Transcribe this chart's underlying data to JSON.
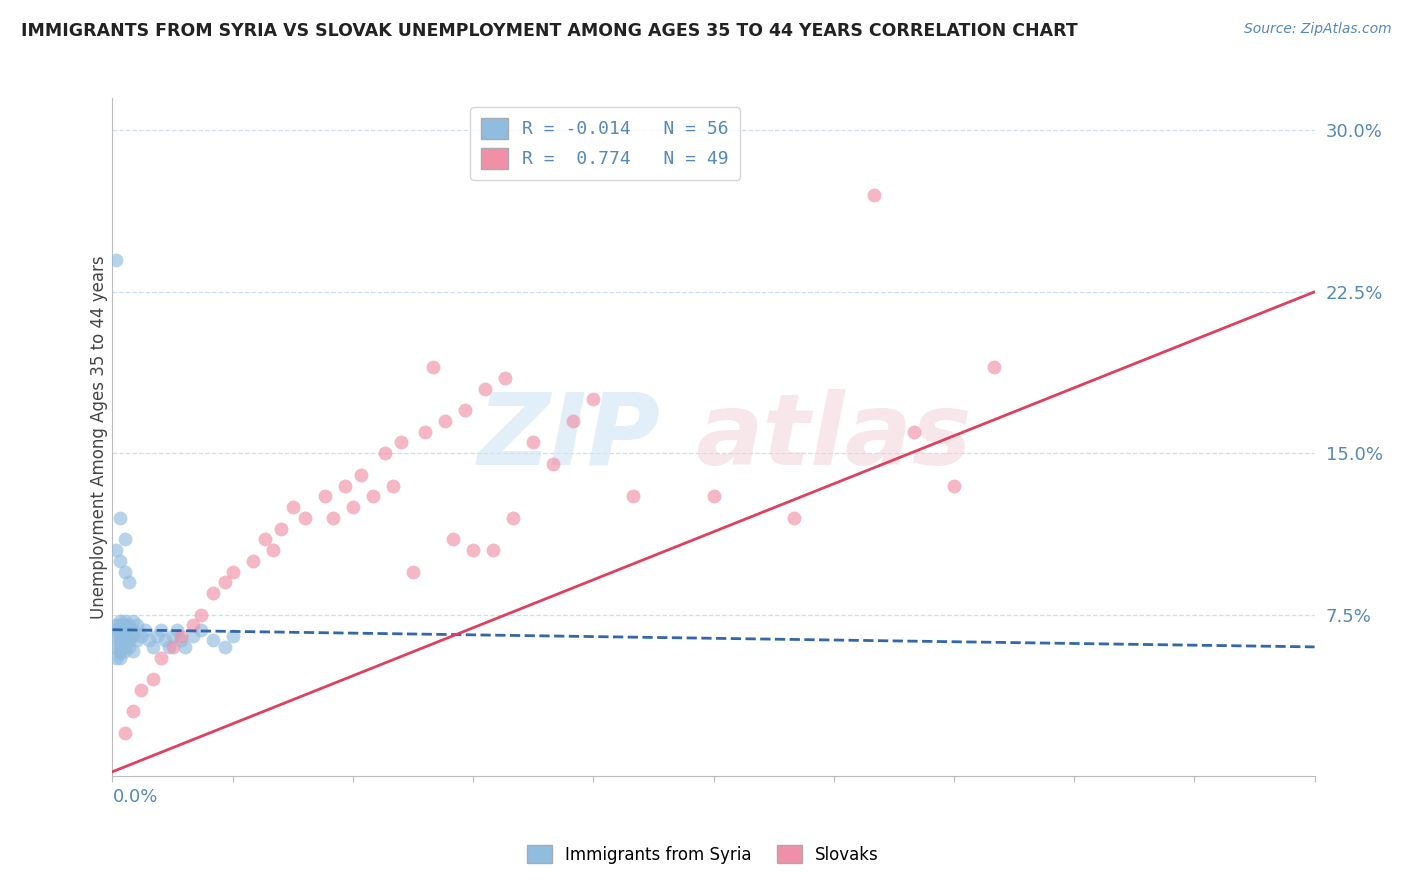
{
  "title": "IMMIGRANTS FROM SYRIA VS SLOVAK UNEMPLOYMENT AMONG AGES 35 TO 44 YEARS CORRELATION CHART",
  "source": "Source: ZipAtlas.com",
  "ylabel": "Unemployment Among Ages 35 to 44 years",
  "xlim": [
    0.0,
    0.3
  ],
  "ylim": [
    0.0,
    0.315
  ],
  "series1_label": "Immigrants from Syria",
  "series2_label": "Slovaks",
  "series1_color": "#90bce0",
  "series2_color": "#f090a8",
  "series1_line_color": "#3366aa",
  "series2_line_color": "#e04060",
  "series1_R": -0.014,
  "series2_R": 0.774,
  "series1_N": 56,
  "series2_N": 49,
  "ytick_vals": [
    0.075,
    0.15,
    0.225,
    0.3
  ],
  "ytick_labels": [
    "7.5%",
    "15.0%",
    "22.5%",
    "30.0%"
  ],
  "series1_x": [
    0.001,
    0.001,
    0.001,
    0.001,
    0.001,
    0.002,
    0.002,
    0.002,
    0.002,
    0.002,
    0.002,
    0.002,
    0.002,
    0.002,
    0.002,
    0.003,
    0.003,
    0.003,
    0.003,
    0.003,
    0.003,
    0.003,
    0.004,
    0.004,
    0.004,
    0.004,
    0.005,
    0.005,
    0.005,
    0.005,
    0.006,
    0.006,
    0.007,
    0.008,
    0.009,
    0.01,
    0.011,
    0.012,
    0.013,
    0.014,
    0.015,
    0.016,
    0.017,
    0.018,
    0.02,
    0.022,
    0.025,
    0.028,
    0.03,
    0.001,
    0.002,
    0.003,
    0.002,
    0.001,
    0.003,
    0.004
  ],
  "series1_y": [
    0.065,
    0.06,
    0.07,
    0.055,
    0.068,
    0.062,
    0.058,
    0.072,
    0.065,
    0.06,
    0.068,
    0.055,
    0.07,
    0.063,
    0.057,
    0.065,
    0.06,
    0.07,
    0.063,
    0.068,
    0.058,
    0.072,
    0.065,
    0.06,
    0.07,
    0.063,
    0.068,
    0.058,
    0.072,
    0.065,
    0.07,
    0.063,
    0.065,
    0.068,
    0.063,
    0.06,
    0.065,
    0.068,
    0.063,
    0.06,
    0.065,
    0.068,
    0.063,
    0.06,
    0.065,
    0.068,
    0.063,
    0.06,
    0.065,
    0.24,
    0.12,
    0.11,
    0.1,
    0.105,
    0.095,
    0.09
  ],
  "series2_x": [
    0.003,
    0.005,
    0.007,
    0.01,
    0.012,
    0.015,
    0.017,
    0.02,
    0.022,
    0.025,
    0.028,
    0.03,
    0.035,
    0.038,
    0.042,
    0.048,
    0.053,
    0.058,
    0.062,
    0.068,
    0.072,
    0.078,
    0.083,
    0.088,
    0.093,
    0.098,
    0.105,
    0.11,
    0.115,
    0.12,
    0.04,
    0.045,
    0.055,
    0.065,
    0.075,
    0.085,
    0.095,
    0.13,
    0.15,
    0.17,
    0.19,
    0.2,
    0.21,
    0.22,
    0.06,
    0.07,
    0.08,
    0.09,
    0.1
  ],
  "series2_y": [
    0.02,
    0.03,
    0.04,
    0.045,
    0.055,
    0.06,
    0.065,
    0.07,
    0.075,
    0.085,
    0.09,
    0.095,
    0.1,
    0.11,
    0.115,
    0.12,
    0.13,
    0.135,
    0.14,
    0.15,
    0.155,
    0.16,
    0.165,
    0.17,
    0.18,
    0.185,
    0.155,
    0.145,
    0.165,
    0.175,
    0.105,
    0.125,
    0.12,
    0.13,
    0.095,
    0.11,
    0.105,
    0.13,
    0.13,
    0.12,
    0.27,
    0.16,
    0.135,
    0.19,
    0.125,
    0.135,
    0.19,
    0.105,
    0.12
  ],
  "line1_x0": 0.0,
  "line1_x1": 0.3,
  "line1_y0": 0.068,
  "line1_y1": 0.06,
  "line2_x0": 0.0,
  "line2_x1": 0.3,
  "line2_y0": 0.002,
  "line2_y1": 0.225
}
